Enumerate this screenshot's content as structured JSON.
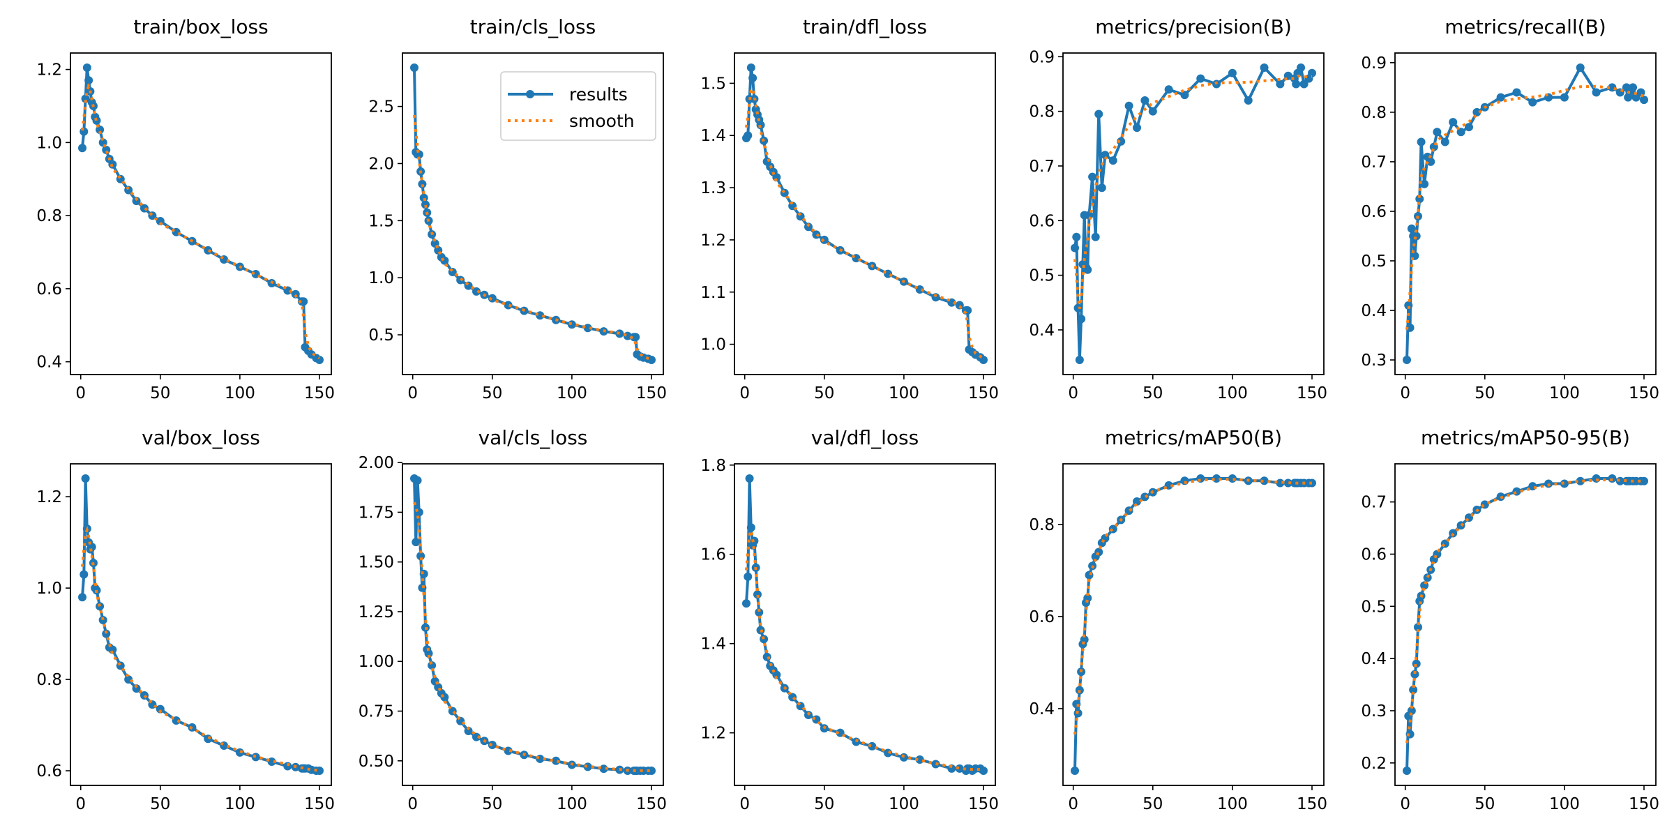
{
  "chart_data": [
    {
      "type": "line",
      "title": "train/box_loss",
      "xlabel": "",
      "ylabel": "",
      "xticks": [
        "0",
        "50",
        "100",
        "150"
      ],
      "yticks": [
        "0.4",
        "0.6",
        "0.8",
        "1.0",
        "1.2"
      ],
      "values": [
        0.985,
        1.03,
        1.12,
        1.205,
        1.17,
        1.14,
        1.11,
        1.1,
        1.07,
        1.06,
        1.035,
        1.0,
        0.98,
        0.955,
        0.94,
        0.9,
        0.87,
        0.84,
        0.82,
        0.8,
        0.785,
        0.755,
        0.73,
        0.705,
        0.68,
        0.66,
        0.64,
        0.615,
        0.595,
        0.585,
        0.565,
        0.565,
        0.44,
        0.43,
        0.42,
        0.41,
        0.405
      ]
    },
    {
      "type": "line",
      "title": "train/cls_loss",
      "xlabel": "",
      "ylabel": "",
      "xticks": [
        "0",
        "50",
        "100",
        "150"
      ],
      "yticks": [
        "0.5",
        "1.0",
        "1.5",
        "2.0",
        "2.5"
      ],
      "values": [
        2.84,
        2.1,
        2.08,
        2.08,
        1.93,
        1.82,
        1.7,
        1.64,
        1.57,
        1.5,
        1.38,
        1.3,
        1.24,
        1.18,
        1.15,
        1.05,
        0.98,
        0.93,
        0.88,
        0.85,
        0.82,
        0.76,
        0.71,
        0.67,
        0.63,
        0.59,
        0.56,
        0.53,
        0.51,
        0.49,
        0.48,
        0.48,
        0.33,
        0.31,
        0.3,
        0.29,
        0.28
      ]
    },
    {
      "type": "line",
      "title": "train/dfl_loss",
      "xlabel": "",
      "ylabel": "",
      "xticks": [
        "0",
        "50",
        "100",
        "150"
      ],
      "yticks": [
        "1.0",
        "1.1",
        "1.2",
        "1.3",
        "1.4",
        "1.5"
      ],
      "values": [
        1.395,
        1.4,
        1.47,
        1.53,
        1.51,
        1.47,
        1.45,
        1.44,
        1.43,
        1.42,
        1.39,
        1.35,
        1.34,
        1.33,
        1.32,
        1.29,
        1.265,
        1.245,
        1.225,
        1.21,
        1.2,
        1.18,
        1.165,
        1.15,
        1.135,
        1.12,
        1.105,
        1.09,
        1.08,
        1.075,
        1.065,
        1.065,
        0.99,
        0.985,
        0.98,
        0.975,
        0.97
      ]
    },
    {
      "type": "line",
      "title": "metrics/precision(B)",
      "xlabel": "",
      "ylabel": "",
      "xticks": [
        "0",
        "50",
        "100",
        "150"
      ],
      "yticks": [
        "0.4",
        "0.5",
        "0.6",
        "0.7",
        "0.8",
        "0.9"
      ],
      "values": [
        0.55,
        0.57,
        0.44,
        0.345,
        0.42,
        0.52,
        0.61,
        0.515,
        0.51,
        0.61,
        0.68,
        0.57,
        0.795,
        0.66,
        0.72,
        0.71,
        0.745,
        0.81,
        0.77,
        0.82,
        0.8,
        0.84,
        0.83,
        0.86,
        0.85,
        0.87,
        0.82,
        0.88,
        0.85,
        0.865,
        0.86,
        0.85,
        0.87,
        0.88,
        0.85,
        0.86,
        0.87
      ]
    },
    {
      "type": "line",
      "title": "metrics/recall(B)",
      "xlabel": "",
      "ylabel": "",
      "xticks": [
        "0",
        "50",
        "100",
        "150"
      ],
      "yticks": [
        "0.3",
        "0.4",
        "0.5",
        "0.6",
        "0.7",
        "0.8",
        "0.9"
      ],
      "values": [
        0.3,
        0.41,
        0.365,
        0.565,
        0.55,
        0.51,
        0.55,
        0.59,
        0.625,
        0.74,
        0.655,
        0.71,
        0.7,
        0.73,
        0.76,
        0.74,
        0.78,
        0.76,
        0.77,
        0.8,
        0.81,
        0.83,
        0.84,
        0.82,
        0.83,
        0.83,
        0.89,
        0.84,
        0.85,
        0.84,
        0.85,
        0.83,
        0.84,
        0.85,
        0.83,
        0.84,
        0.825
      ]
    },
    {
      "type": "line",
      "title": "val/box_loss",
      "xlabel": "",
      "ylabel": "",
      "xticks": [
        "0",
        "50",
        "100",
        "150"
      ],
      "yticks": [
        "0.6",
        "0.8",
        "1.0",
        "1.2"
      ],
      "values": [
        0.98,
        1.03,
        1.24,
        1.13,
        1.1,
        1.085,
        1.09,
        1.055,
        1.0,
        0.995,
        0.96,
        0.93,
        0.9,
        0.87,
        0.865,
        0.83,
        0.8,
        0.78,
        0.765,
        0.745,
        0.735,
        0.71,
        0.695,
        0.67,
        0.655,
        0.64,
        0.63,
        0.62,
        0.61,
        0.608,
        0.605,
        0.605,
        0.605,
        0.605,
        0.602,
        0.6,
        0.6
      ]
    },
    {
      "type": "line",
      "title": "val/cls_loss",
      "xlabel": "",
      "ylabel": "",
      "xticks": [
        "0",
        "50",
        "100",
        "150"
      ],
      "yticks": [
        "0.50",
        "0.75",
        "1.00",
        "1.25",
        "1.50",
        "1.75",
        "2.00"
      ],
      "values": [
        1.92,
        1.6,
        1.91,
        1.75,
        1.53,
        1.37,
        1.44,
        1.17,
        1.06,
        1.04,
        0.98,
        0.9,
        0.87,
        0.84,
        0.82,
        0.75,
        0.7,
        0.65,
        0.62,
        0.6,
        0.58,
        0.55,
        0.53,
        0.51,
        0.5,
        0.48,
        0.47,
        0.46,
        0.455,
        0.45,
        0.45,
        0.45,
        0.45,
        0.45,
        0.45,
        0.45,
        0.45
      ]
    },
    {
      "type": "line",
      "title": "val/dfl_loss",
      "xlabel": "",
      "ylabel": "",
      "xticks": [
        "0",
        "50",
        "100",
        "150"
      ],
      "yticks": [
        "1.2",
        "1.4",
        "1.6",
        "1.8"
      ],
      "values": [
        1.49,
        1.55,
        1.77,
        1.66,
        1.62,
        1.63,
        1.57,
        1.51,
        1.47,
        1.43,
        1.41,
        1.37,
        1.35,
        1.34,
        1.33,
        1.3,
        1.28,
        1.26,
        1.24,
        1.23,
        1.21,
        1.2,
        1.18,
        1.17,
        1.155,
        1.145,
        1.14,
        1.13,
        1.12,
        1.12,
        1.115,
        1.12,
        1.12,
        1.115,
        1.12,
        1.12,
        1.115
      ]
    },
    {
      "type": "line",
      "title": "metrics/mAP50(B)",
      "xlabel": "",
      "ylabel": "",
      "xticks": [
        "0",
        "50",
        "100",
        "150"
      ],
      "yticks": [
        "0.4",
        "0.6",
        "0.8"
      ],
      "values": [
        0.265,
        0.41,
        0.39,
        0.44,
        0.48,
        0.54,
        0.55,
        0.63,
        0.64,
        0.69,
        0.71,
        0.73,
        0.74,
        0.76,
        0.77,
        0.79,
        0.81,
        0.83,
        0.85,
        0.86,
        0.87,
        0.885,
        0.895,
        0.9,
        0.9,
        0.9,
        0.895,
        0.895,
        0.89,
        0.89,
        0.89,
        0.89,
        0.89,
        0.89,
        0.89,
        0.89,
        0.89
      ]
    },
    {
      "type": "line",
      "title": "metrics/mAP50-95(B)",
      "xlabel": "",
      "ylabel": "",
      "xticks": [
        "0",
        "50",
        "100",
        "150"
      ],
      "yticks": [
        "0.2",
        "0.3",
        "0.4",
        "0.5",
        "0.6",
        "0.7"
      ],
      "values": [
        0.185,
        0.29,
        0.255,
        0.3,
        0.34,
        0.37,
        0.39,
        0.46,
        0.51,
        0.52,
        0.54,
        0.555,
        0.57,
        0.59,
        0.6,
        0.62,
        0.64,
        0.655,
        0.67,
        0.685,
        0.695,
        0.71,
        0.72,
        0.73,
        0.735,
        0.735,
        0.74,
        0.745,
        0.745,
        0.74,
        0.74,
        0.74,
        0.74,
        0.74,
        0.74,
        0.74,
        0.74
      ]
    }
  ],
  "epochs": [
    1,
    2,
    3,
    4,
    5,
    6,
    7,
    8,
    9,
    10,
    12,
    14,
    16,
    18,
    20,
    25,
    30,
    35,
    40,
    45,
    50,
    60,
    70,
    80,
    90,
    100,
    110,
    120,
    130,
    135,
    139,
    140,
    141,
    143,
    145,
    148,
    150
  ],
  "xlim": [
    0,
    150
  ],
  "legend": {
    "placement": "upper-right of train/cls_loss",
    "results": "results",
    "smooth": "smooth"
  },
  "colors": {
    "results": "#1f77b4",
    "smooth": "#ff7f0e"
  }
}
